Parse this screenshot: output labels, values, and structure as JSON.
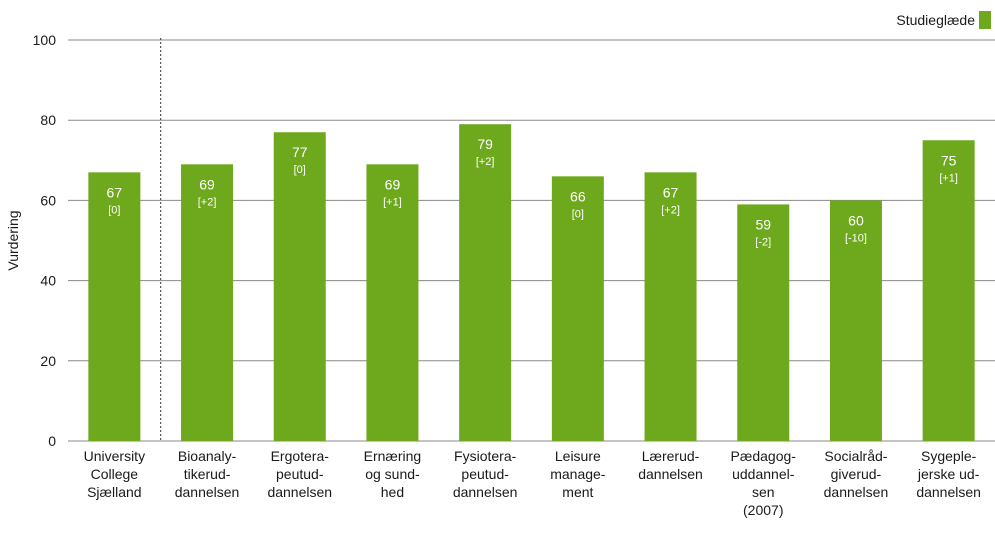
{
  "chart_data": {
    "type": "bar",
    "ylabel": "Vurdering",
    "ylim": [
      0,
      100
    ],
    "yticks": [
      0,
      20,
      40,
      60,
      80,
      100
    ],
    "grid": true,
    "legend_position": "top-right",
    "categories": [
      [
        "University",
        "College",
        "Sjælland"
      ],
      [
        "Bioanaly-",
        "tikerud-",
        "dannelsen"
      ],
      [
        "Ergotera-",
        "peutud-",
        "dannelsen"
      ],
      [
        "Ernæring",
        "og sund-",
        "hed"
      ],
      [
        "Fysiotera-",
        "peutud-",
        "dannelsen"
      ],
      [
        "Leisure",
        "manage-",
        "ment"
      ],
      [
        "Lærerud-",
        "dannelsen"
      ],
      [
        "Pædagog-",
        "uddannel-",
        "sen",
        "(2007)"
      ],
      [
        "Socialråd-",
        "giverud-",
        "dannelsen"
      ],
      [
        "Sygeple-",
        "jerske ud-",
        "dannelsen"
      ]
    ],
    "series": [
      {
        "name": "Studieglæde",
        "color": "#6ea81c",
        "values": [
          67,
          69,
          77,
          69,
          79,
          66,
          67,
          59,
          60,
          75
        ],
        "change_labels": [
          "[0]",
          "[+2]",
          "[0]",
          "[+1]",
          "[+2]",
          "[0]",
          "[+2]",
          "[-2]",
          "[-10]",
          "[+1]"
        ]
      }
    ]
  }
}
